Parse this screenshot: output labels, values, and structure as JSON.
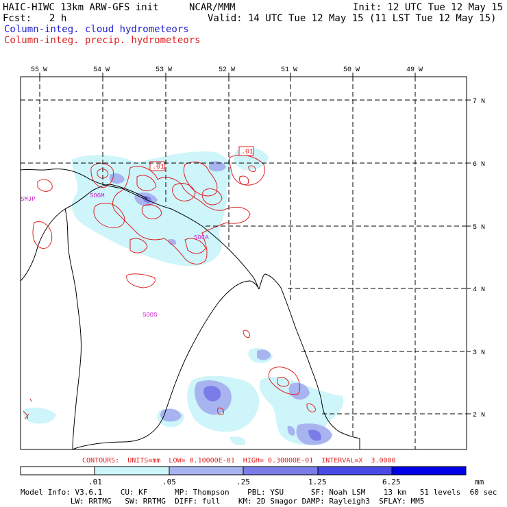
{
  "header": {
    "model_title": "HAIC-HIWC 13km ARW-GFS init",
    "center": "NCAR/MMM",
    "init": "Init: 12 UTC Tue 12 May 15",
    "fcst_label": "Fcst:",
    "fcst_value": "2 h",
    "valid": "Valid: 14 UTC Tue 12 May 15 (11 LST Tue 12 May 15)",
    "field1": "Column-integ. cloud hydrometeors",
    "field2": "Column-integ. precip. hydrometeors"
  },
  "map": {
    "lon_labels": [
      "55 W",
      "54 W",
      "53 W",
      "52 W",
      "51 W",
      "50 W",
      "49 W"
    ],
    "lat_labels": [
      "7 N",
      "6 N",
      "5 N",
      "4 N",
      "3 N",
      "2 N"
    ],
    "stations": [
      "SMJP",
      "SOGM",
      "SOCA",
      "SOOS"
    ],
    "contour_labels": [
      ".01",
      ".01"
    ],
    "colors": {
      "cloud_light": "#cdf5fa",
      "cloud_mid": "#a8b4f0",
      "cloud_dark": "#7c7ce8",
      "precip_contour": "#e02020",
      "station": "#d020d0",
      "coast": "#000000"
    }
  },
  "contours_info": "CONTOURS:  UNITS=mm  LOW= 0.10000E-01  HIGH= 0.30000E-01  INTERVAL=X  3.0000",
  "legend": {
    "labels": [
      ".01",
      ".05",
      ".25",
      "1.25",
      "6.25"
    ],
    "unit": "mm",
    "colors": [
      "#ffffff",
      "#cdf5fa",
      "#a8b4f0",
      "#7c7ce8",
      "#4a4ae6",
      "#0000e8"
    ]
  },
  "footer": {
    "line1": "Model Info: V3.6.1    CU: KF      MP: Thompson    PBL: YSU      SF: Noah LSM    13 km   51 levels  60 sec",
    "line2": "           LW: RRTMG   SW: RRTMG  DIFF: full    KM: 2D Smagor DAMP: Rayleigh3  SFLAY: MM5"
  }
}
